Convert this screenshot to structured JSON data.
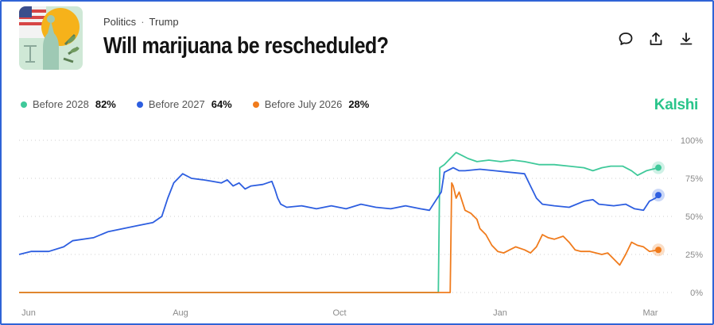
{
  "header": {
    "category": "Politics",
    "subcategory": "Trump",
    "separator": "·",
    "title": "Will marijuana be rescheduled?"
  },
  "actions": [
    {
      "name": "comment-icon"
    },
    {
      "name": "share-icon"
    },
    {
      "name": "download-icon"
    }
  ],
  "brand": "Kalshi",
  "legend": [
    {
      "label": "Before 2028",
      "value": "82%",
      "color": "#3fc99a"
    },
    {
      "label": "Before 2027",
      "value": "64%",
      "color": "#2d5ee0"
    },
    {
      "label": "Before July 2026",
      "value": "28%",
      "color": "#f07b1c"
    }
  ],
  "chart_data": {
    "type": "line",
    "x_tick_labels": [
      "Jun",
      "Aug",
      "Oct",
      "Jan",
      "Mar"
    ],
    "y_tick_labels": [
      "100%",
      "75%",
      "50%",
      "25%",
      "0%"
    ],
    "ylim": [
      0,
      100
    ],
    "grid": true,
    "series": [
      {
        "name": "Before 2027",
        "color": "#2d5ee0",
        "points": [
          [
            0,
            25
          ],
          [
            4,
            27
          ],
          [
            10,
            27
          ],
          [
            15,
            30
          ],
          [
            18,
            34
          ],
          [
            25,
            36
          ],
          [
            30,
            40
          ],
          [
            35,
            42
          ],
          [
            40,
            44
          ],
          [
            45,
            46
          ],
          [
            48,
            50
          ],
          [
            50,
            62
          ],
          [
            52,
            72
          ],
          [
            55,
            78
          ],
          [
            58,
            75
          ],
          [
            62,
            74
          ],
          [
            65,
            73
          ],
          [
            68,
            72
          ],
          [
            70,
            74
          ],
          [
            72,
            70
          ],
          [
            74,
            72
          ],
          [
            76,
            68
          ],
          [
            78,
            70
          ],
          [
            82,
            71
          ],
          [
            85,
            73
          ],
          [
            86,
            68
          ],
          [
            87,
            62
          ],
          [
            88,
            58
          ],
          [
            90,
            56
          ],
          [
            95,
            57
          ],
          [
            100,
            55
          ],
          [
            105,
            57
          ],
          [
            110,
            55
          ],
          [
            115,
            58
          ],
          [
            120,
            56
          ],
          [
            125,
            55
          ],
          [
            130,
            57
          ],
          [
            135,
            55
          ],
          [
            138,
            54
          ],
          [
            140,
            60
          ],
          [
            142,
            66
          ],
          [
            143,
            79
          ],
          [
            144,
            80
          ],
          [
            146,
            82
          ],
          [
            148,
            80
          ],
          [
            150,
            80
          ],
          [
            155,
            81
          ],
          [
            160,
            80
          ],
          [
            165,
            79
          ],
          [
            170,
            78
          ],
          [
            172,
            70
          ],
          [
            174,
            62
          ],
          [
            176,
            58
          ],
          [
            180,
            57
          ],
          [
            185,
            56
          ],
          [
            190,
            60
          ],
          [
            193,
            61
          ],
          [
            195,
            58
          ],
          [
            200,
            57
          ],
          [
            204,
            58
          ],
          [
            207,
            55
          ],
          [
            210,
            54
          ],
          [
            212,
            60
          ],
          [
            214,
            62
          ],
          [
            215,
            64
          ]
        ]
      },
      {
        "name": "Before 2028",
        "color": "#3fc99a",
        "points": [
          [
            0,
            0
          ],
          [
            141,
            0
          ],
          [
            141.5,
            82
          ],
          [
            143,
            84
          ],
          [
            145,
            88
          ],
          [
            147,
            92
          ],
          [
            149,
            90
          ],
          [
            151,
            88
          ],
          [
            154,
            86
          ],
          [
            158,
            87
          ],
          [
            162,
            86
          ],
          [
            166,
            87
          ],
          [
            170,
            86
          ],
          [
            175,
            84
          ],
          [
            180,
            84
          ],
          [
            185,
            83
          ],
          [
            190,
            82
          ],
          [
            193,
            80
          ],
          [
            196,
            82
          ],
          [
            199,
            83
          ],
          [
            203,
            83
          ],
          [
            206,
            80
          ],
          [
            208,
            77
          ],
          [
            211,
            80
          ],
          [
            215,
            82
          ]
        ]
      },
      {
        "name": "Before July 2026",
        "color": "#f07b1c",
        "points": [
          [
            0,
            0
          ],
          [
            145,
            0
          ],
          [
            145.5,
            72
          ],
          [
            146,
            70
          ],
          [
            147,
            62
          ],
          [
            148,
            66
          ],
          [
            150,
            54
          ],
          [
            152,
            52
          ],
          [
            154,
            48
          ],
          [
            155,
            42
          ],
          [
            157,
            38
          ],
          [
            159,
            31
          ],
          [
            161,
            27
          ],
          [
            163,
            26
          ],
          [
            165,
            28
          ],
          [
            167,
            30
          ],
          [
            170,
            28
          ],
          [
            172,
            26
          ],
          [
            174,
            30
          ],
          [
            176,
            38
          ],
          [
            178,
            36
          ],
          [
            180,
            35
          ],
          [
            183,
            37
          ],
          [
            185,
            33
          ],
          [
            187,
            28
          ],
          [
            189,
            27
          ],
          [
            192,
            27
          ],
          [
            194,
            26
          ],
          [
            196,
            25
          ],
          [
            198,
            26
          ],
          [
            200,
            22
          ],
          [
            202,
            18
          ],
          [
            204,
            25
          ],
          [
            206,
            33
          ],
          [
            208,
            31
          ],
          [
            210,
            30
          ],
          [
            212,
            27
          ],
          [
            215,
            28
          ]
        ]
      }
    ]
  }
}
